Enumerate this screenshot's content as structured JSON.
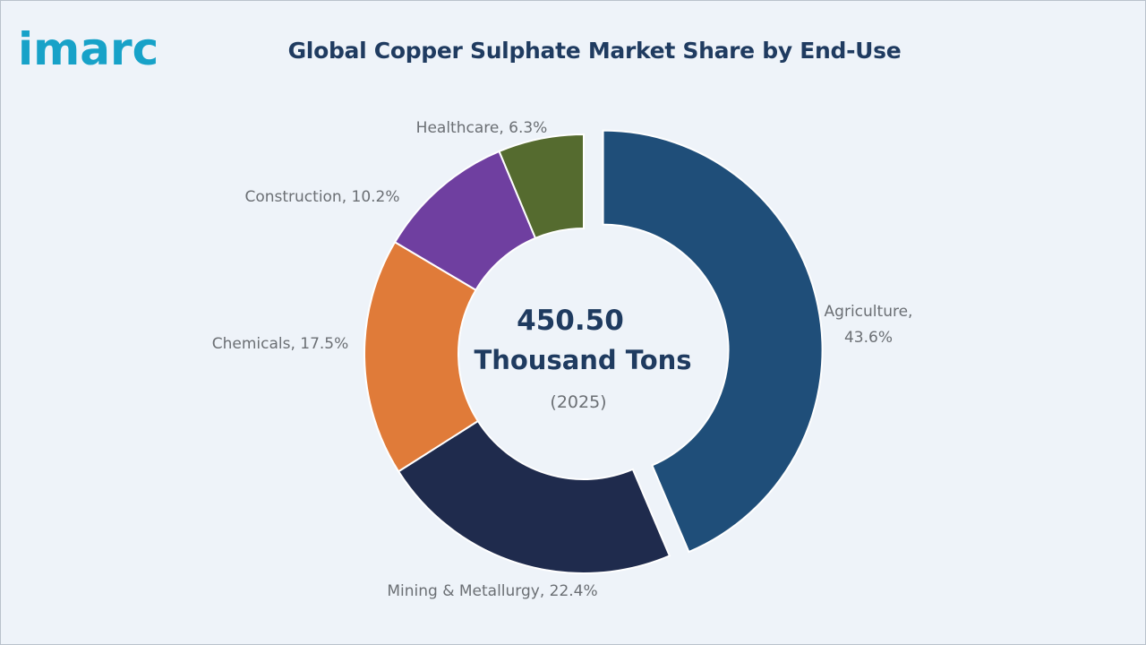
{
  "brand": {
    "logo_text": "imarc",
    "logo_color": "#17a2c8"
  },
  "chart_data": {
    "type": "pie",
    "title": "Global Copper Sulphate Market Share by End-Use",
    "donut": true,
    "exploded_slice": "Agriculture",
    "center": {
      "value": "450.50",
      "unit": "Thousand Tons",
      "year": "(2025)"
    },
    "slices": [
      {
        "name": "Agriculture",
        "value": 43.6,
        "label": "Agriculture,",
        "label2": "43.6%",
        "color": "#1f4e79"
      },
      {
        "name": "Mining & Metallurgy",
        "value": 22.4,
        "label": "Mining & Metallurgy, 22.4%",
        "color": "#1f2b4d"
      },
      {
        "name": "Chemicals",
        "value": 17.5,
        "label": "Chemicals, 17.5%",
        "color": "#e07b39"
      },
      {
        "name": "Construction",
        "value": 10.2,
        "label": "Construction, 10.2%",
        "color": "#6f3fa0"
      },
      {
        "name": "Healthcare",
        "value": 6.3,
        "label": "Healthcare, 6.3%",
        "color": "#556b2f"
      }
    ]
  }
}
